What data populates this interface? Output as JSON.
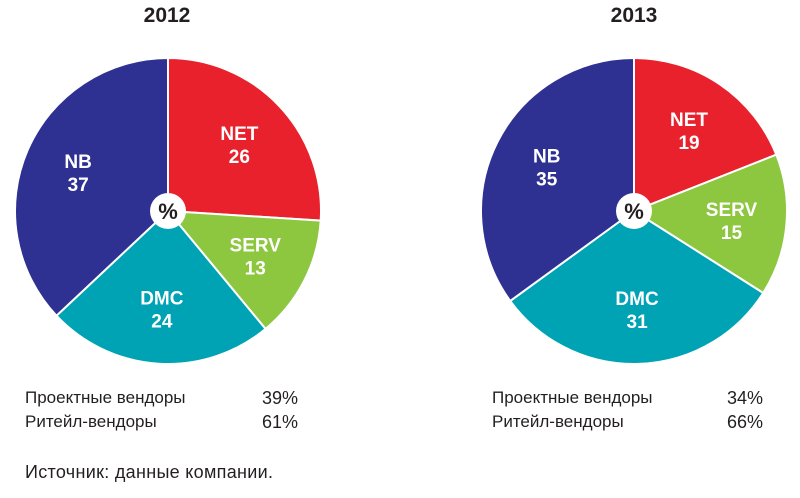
{
  "chart_data": [
    {
      "type": "pie",
      "title": "2012",
      "center_label": "%",
      "slices": [
        {
          "name": "NET",
          "value": 26,
          "color": "#e8212d"
        },
        {
          "name": "SERV",
          "value": 13,
          "color": "#8dc63f"
        },
        {
          "name": "DMC",
          "value": 24,
          "color": "#00a3b4"
        },
        {
          "name": "NB",
          "value": 37,
          "color": "#2e3192"
        }
      ],
      "shares": [
        {
          "label": "Проектные вендоры",
          "value": "39%"
        },
        {
          "label": "Ритейл-вендоры",
          "value": "61%"
        }
      ]
    },
    {
      "type": "pie",
      "title": "2013",
      "center_label": "%",
      "slices": [
        {
          "name": "NET",
          "value": 19,
          "color": "#e8212d"
        },
        {
          "name": "SERV",
          "value": 15,
          "color": "#8dc63f"
        },
        {
          "name": "DMC",
          "value": 31,
          "color": "#00a3b4"
        },
        {
          "name": "NB",
          "value": 35,
          "color": "#2e3192"
        }
      ],
      "shares": [
        {
          "label": "Проектные вендоры",
          "value": "34%"
        },
        {
          "label": "Ритейл-вендоры",
          "value": "66%"
        }
      ]
    }
  ],
  "source": "Источник: данные компании."
}
